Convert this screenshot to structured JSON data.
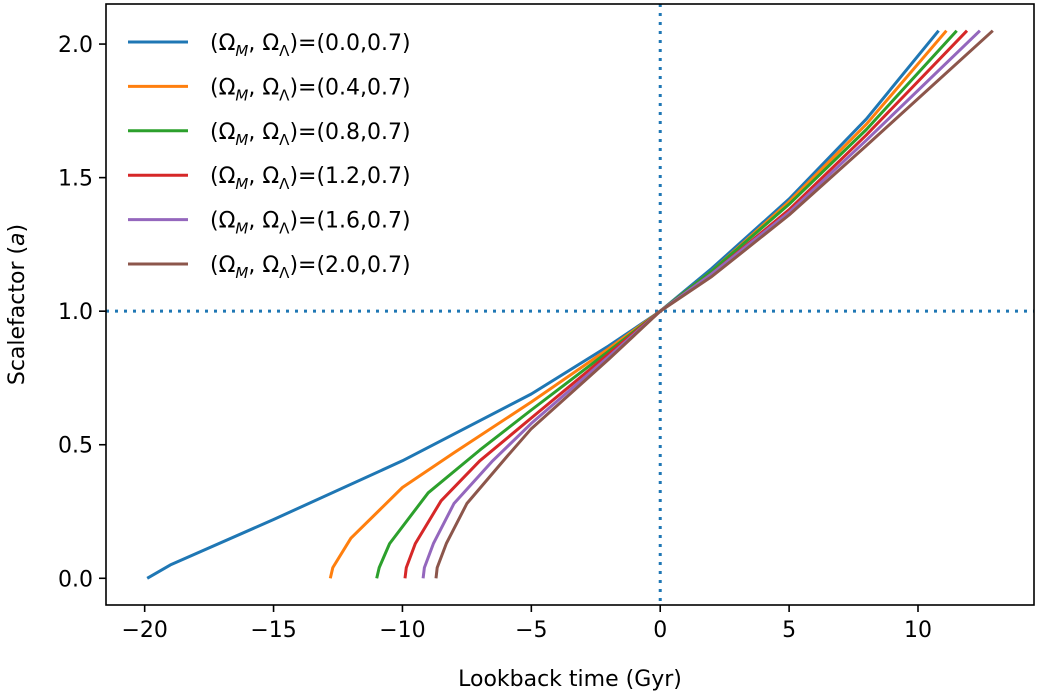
{
  "chart_data": {
    "type": "line",
    "xlabel": "Lookback time (Gyr)",
    "ylabel": "Scalefactor (a)",
    "xlim": [
      -21.5,
      14.5
    ],
    "ylim": [
      -0.1,
      2.15
    ],
    "xticks": [
      -20,
      -15,
      -10,
      -5,
      0,
      5,
      10
    ],
    "xtick_labels": [
      "−20",
      "−15",
      "−10",
      "−5",
      "0",
      "5",
      "10"
    ],
    "yticks": [
      0.0,
      0.5,
      1.0,
      1.5,
      2.0
    ],
    "ytick_labels": [
      "0.0",
      "0.5",
      "1.0",
      "1.5",
      "2.0"
    ],
    "grid": false,
    "legend_position": "upper-left",
    "reference_lines": [
      {
        "orientation": "vertical",
        "value": 0,
        "style": "dotted",
        "color": "#1f77b4"
      },
      {
        "orientation": "horizontal",
        "value": 1.0,
        "style": "dotted",
        "color": "#1f77b4"
      }
    ],
    "series": [
      {
        "name": "(ΩM, ΩΛ)=(0.0,0.7)",
        "label_prefix": "(Ω",
        "label_sub1": "M",
        "label_mid": ", Ω",
        "label_sub2": "Λ",
        "label_suffix": ")=(0.0,0.7)",
        "color": "#1f77b4",
        "x": [
          -19.9,
          -19.0,
          -15.0,
          -10.0,
          -5.0,
          -2.0,
          0.0,
          2.0,
          5.0,
          8.0,
          10.8
        ],
        "y": [
          0.0,
          0.05,
          0.22,
          0.44,
          0.69,
          0.87,
          1.0,
          1.16,
          1.42,
          1.72,
          2.05
        ]
      },
      {
        "name": "(ΩM, ΩΛ)=(0.4,0.7)",
        "label_prefix": "(Ω",
        "label_sub1": "M",
        "label_mid": ", Ω",
        "label_sub2": "Λ",
        "label_suffix": ")=(0.4,0.7)",
        "color": "#ff7f0e",
        "x": [
          -12.8,
          -12.7,
          -12.0,
          -10.0,
          -8.0,
          -5.0,
          -2.0,
          0.0,
          2.0,
          5.0,
          8.0,
          11.1
        ],
        "y": [
          0.0,
          0.04,
          0.15,
          0.34,
          0.47,
          0.66,
          0.86,
          1.0,
          1.15,
          1.41,
          1.7,
          2.05
        ]
      },
      {
        "name": "(ΩM, ΩΛ)=(0.8,0.7)",
        "label_prefix": "(Ω",
        "label_sub1": "M",
        "label_mid": ", Ω",
        "label_sub2": "Λ",
        "label_suffix": ")=(0.8,0.7)",
        "color": "#2ca02c",
        "x": [
          -11.0,
          -10.9,
          -10.5,
          -9.0,
          -7.0,
          -5.0,
          -2.0,
          0.0,
          2.0,
          5.0,
          8.0,
          11.5
        ],
        "y": [
          0.0,
          0.04,
          0.13,
          0.32,
          0.48,
          0.63,
          0.85,
          1.0,
          1.15,
          1.4,
          1.68,
          2.05
        ]
      },
      {
        "name": "(ΩM, ΩΛ)=(1.2,0.7)",
        "label_prefix": "(Ω",
        "label_sub1": "M",
        "label_mid": ", Ω",
        "label_sub2": "Λ",
        "label_suffix": ")=(1.2,0.7)",
        "color": "#d62728",
        "x": [
          -9.9,
          -9.85,
          -9.5,
          -8.5,
          -7.0,
          -5.0,
          -2.0,
          0.0,
          2.0,
          5.0,
          8.0,
          11.9
        ],
        "y": [
          0.0,
          0.04,
          0.13,
          0.29,
          0.44,
          0.6,
          0.84,
          1.0,
          1.14,
          1.38,
          1.66,
          2.05
        ]
      },
      {
        "name": "(ΩM, ΩΛ)=(1.6,0.7)",
        "label_prefix": "(Ω",
        "label_sub1": "M",
        "label_mid": ", Ω",
        "label_sub2": "Λ",
        "label_suffix": ")=(1.6,0.7)",
        "color": "#9467bd",
        "x": [
          -9.2,
          -9.15,
          -8.8,
          -8.0,
          -6.5,
          -5.0,
          -2.0,
          0.0,
          2.0,
          5.0,
          8.0,
          12.4
        ],
        "y": [
          0.0,
          0.04,
          0.13,
          0.28,
          0.44,
          0.58,
          0.83,
          1.0,
          1.14,
          1.37,
          1.64,
          2.05
        ]
      },
      {
        "name": "(ΩM, ΩΛ)=(2.0,0.7)",
        "label_prefix": "(Ω",
        "label_sub1": "M",
        "label_mid": ", Ω",
        "label_sub2": "Λ",
        "label_suffix": ")=(2.0,0.7)",
        "color": "#8c564b",
        "x": [
          -8.7,
          -8.65,
          -8.3,
          -7.5,
          -6.0,
          -5.0,
          -2.0,
          0.0,
          2.0,
          5.0,
          8.0,
          12.9
        ],
        "y": [
          0.0,
          0.04,
          0.13,
          0.28,
          0.45,
          0.56,
          0.82,
          1.0,
          1.13,
          1.36,
          1.62,
          2.05
        ]
      }
    ]
  }
}
